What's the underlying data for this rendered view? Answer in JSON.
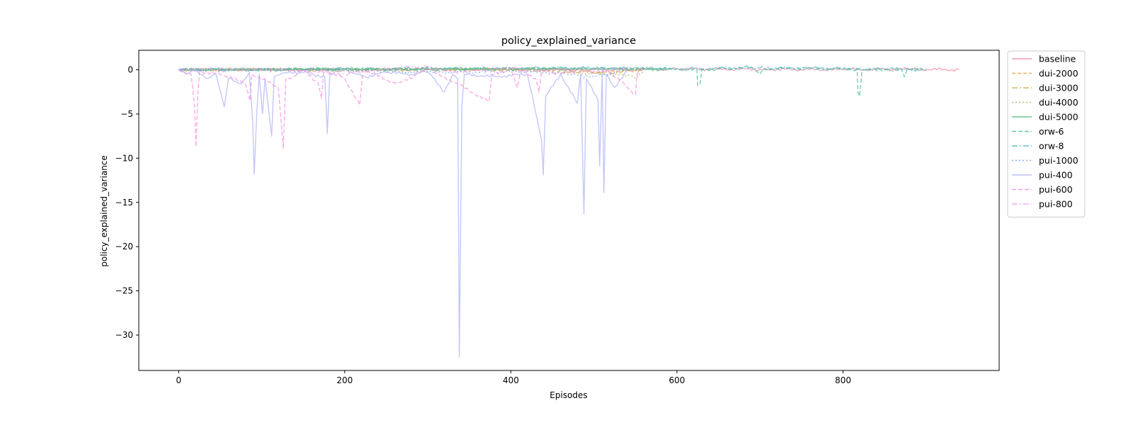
{
  "chart_data": {
    "type": "line",
    "title": "policy_explained_variance",
    "xlabel": "Episodes",
    "ylabel": "policy_explained_variance",
    "xlim": [
      -48,
      988
    ],
    "ylim": [
      -34.0,
      2.2
    ],
    "xticks": [
      0,
      200,
      400,
      600,
      800
    ],
    "yticks": [
      0,
      -5,
      -10,
      -15,
      -20,
      -25,
      -30
    ],
    "grid": false,
    "legend_position": "outside-top-right",
    "series": [
      {
        "name": "baseline",
        "color": "#f28ba0",
        "dash": "solid",
        "x_end": 940,
        "points": [
          [
            0,
            0
          ],
          [
            60,
            -0.05
          ],
          [
            120,
            0.02
          ],
          [
            200,
            0.05
          ],
          [
            300,
            0.03
          ],
          [
            400,
            0.06
          ],
          [
            500,
            0.02
          ],
          [
            600,
            0.08
          ],
          [
            700,
            0.05
          ],
          [
            800,
            0.02
          ],
          [
            880,
            0.06
          ],
          [
            940,
            0
          ]
        ]
      },
      {
        "name": "dui-2000",
        "color": "#e3a73b",
        "dash": "5,3",
        "x_end": 555,
        "points": [
          [
            0,
            0
          ],
          [
            100,
            0.05
          ],
          [
            200,
            -0.1
          ],
          [
            300,
            0.1
          ],
          [
            400,
            0.05
          ],
          [
            480,
            -0.3
          ],
          [
            520,
            -0.2
          ],
          [
            555,
            0
          ]
        ]
      },
      {
        "name": "dui-3000",
        "color": "#c9a843",
        "dash": "8,3,2,3",
        "x_end": 560,
        "points": [
          [
            0,
            0
          ],
          [
            150,
            0.05
          ],
          [
            300,
            -0.05
          ],
          [
            450,
            0.1
          ],
          [
            520,
            -0.4
          ],
          [
            560,
            0
          ]
        ]
      },
      {
        "name": "dui-4000",
        "color": "#9cb05a",
        "dash": "2,3",
        "x_end": 560,
        "points": [
          [
            0,
            0
          ],
          [
            200,
            0.05
          ],
          [
            400,
            0.05
          ],
          [
            545,
            -0.7
          ],
          [
            550,
            -1.0
          ],
          [
            555,
            -0.5
          ],
          [
            560,
            0
          ]
        ]
      },
      {
        "name": "dui-5000",
        "color": "#4ec07a",
        "dash": "solid",
        "x_end": 590,
        "points": [
          [
            0,
            0
          ],
          [
            150,
            0.04
          ],
          [
            300,
            0.06
          ],
          [
            450,
            0.08
          ],
          [
            520,
            0.1
          ],
          [
            590,
            0.05
          ]
        ]
      },
      {
        "name": "orw-6",
        "color": "#3fbfa0",
        "dash": "6,3",
        "x_end": 900,
        "points": [
          [
            0,
            0
          ],
          [
            200,
            0.1
          ],
          [
            400,
            0.15
          ],
          [
            600,
            0.1
          ],
          [
            624,
            0
          ],
          [
            625,
            -1.8
          ],
          [
            628,
            -1.5
          ],
          [
            630,
            0
          ],
          [
            690,
            0.3
          ],
          [
            700,
            -0.5
          ],
          [
            704,
            0.1
          ],
          [
            760,
            0.2
          ],
          [
            817,
            0
          ],
          [
            818,
            -2.6
          ],
          [
            820,
            -3.0
          ],
          [
            823,
            0
          ],
          [
            870,
            0.1
          ],
          [
            874,
            -0.8
          ],
          [
            877,
            0
          ],
          [
            900,
            0.1
          ]
        ]
      },
      {
        "name": "orw-8",
        "color": "#45b6c0",
        "dash": "8,3,2,3",
        "x_end": 900,
        "points": [
          [
            0,
            0
          ],
          [
            250,
            0.1
          ],
          [
            500,
            0.2
          ],
          [
            600,
            0.1
          ],
          [
            700,
            0.2
          ],
          [
            800,
            0.1
          ],
          [
            900,
            0
          ]
        ]
      },
      {
        "name": "pui-1000",
        "color": "#6f9df0",
        "dash": "2,3",
        "x_end": 540,
        "points": [
          [
            0,
            0
          ],
          [
            200,
            -0.1
          ],
          [
            300,
            -0.3
          ],
          [
            420,
            -0.2
          ],
          [
            470,
            -0.5
          ],
          [
            500,
            -0.8
          ],
          [
            540,
            0
          ]
        ]
      },
      {
        "name": "pui-400",
        "color": "#b0b4f5",
        "dash": "solid",
        "x_end": 540,
        "points": [
          [
            0,
            0
          ],
          [
            10,
            -0.5
          ],
          [
            20,
            0
          ],
          [
            35,
            -1.0
          ],
          [
            45,
            -0.5
          ],
          [
            55,
            -4.2
          ],
          [
            60,
            -1.0
          ],
          [
            75,
            -1.6
          ],
          [
            85,
            -0.3
          ],
          [
            89,
            -5.5
          ],
          [
            91,
            -11.8
          ],
          [
            94,
            -5.0
          ],
          [
            97,
            -0.5
          ],
          [
            101,
            -5.0
          ],
          [
            104,
            -1.0
          ],
          [
            112,
            -7.5
          ],
          [
            115,
            -0.8
          ],
          [
            125,
            -0.4
          ],
          [
            150,
            -0.3
          ],
          [
            176,
            -0.8
          ],
          [
            179,
            -7.2
          ],
          [
            182,
            -0.5
          ],
          [
            200,
            0
          ],
          [
            225,
            -0.8
          ],
          [
            250,
            -0.3
          ],
          [
            280,
            -0.5
          ],
          [
            300,
            -0.2
          ],
          [
            320,
            -2.5
          ],
          [
            330,
            -0.5
          ],
          [
            336,
            -1.0
          ],
          [
            338,
            -32.5
          ],
          [
            341,
            -4.2
          ],
          [
            344,
            -0.5
          ],
          [
            380,
            -0.8
          ],
          [
            420,
            -0.5
          ],
          [
            437,
            -8.0
          ],
          [
            439,
            -11.9
          ],
          [
            442,
            -3.0
          ],
          [
            460,
            -0.5
          ],
          [
            480,
            -3.8
          ],
          [
            484,
            -0.5
          ],
          [
            488,
            -16.3
          ],
          [
            491,
            -1.0
          ],
          [
            505,
            -3.5
          ],
          [
            507,
            -10.9
          ],
          [
            510,
            0
          ],
          [
            512,
            -13.9
          ],
          [
            515,
            -0.5
          ],
          [
            525,
            -2.0
          ],
          [
            540,
            0
          ]
        ]
      },
      {
        "name": "pui-600",
        "color": "#f58fdd",
        "dash": "6,3",
        "x_end": 555,
        "points": [
          [
            0,
            0
          ],
          [
            15,
            -0.5
          ],
          [
            19,
            -4.0
          ],
          [
            21,
            -8.7
          ],
          [
            23,
            -3.0
          ],
          [
            25,
            -0.2
          ],
          [
            50,
            -0.5
          ],
          [
            80,
            -1.5
          ],
          [
            86,
            -3.5
          ],
          [
            88,
            -0.5
          ],
          [
            120,
            -2.0
          ],
          [
            126,
            -8.9
          ],
          [
            129,
            -1.0
          ],
          [
            135,
            -1.0
          ],
          [
            150,
            0
          ],
          [
            168,
            -1.5
          ],
          [
            172,
            -3.2
          ],
          [
            175,
            0
          ],
          [
            200,
            -1.0
          ],
          [
            218,
            -4.0
          ],
          [
            222,
            0
          ],
          [
            260,
            -1.5
          ],
          [
            280,
            -1.0
          ],
          [
            300,
            0.2
          ],
          [
            320,
            -0.8
          ],
          [
            374,
            -3.6
          ],
          [
            377,
            -0.5
          ],
          [
            400,
            0
          ],
          [
            408,
            -2.0
          ],
          [
            412,
            0
          ],
          [
            430,
            -1.0
          ],
          [
            434,
            -2.5
          ],
          [
            437,
            0
          ],
          [
            480,
            0
          ],
          [
            520,
            -0.3
          ],
          [
            550,
            -2.8
          ],
          [
            552,
            -0.5
          ],
          [
            555,
            0
          ]
        ]
      },
      {
        "name": "pui-800",
        "color": "#f5a0e8",
        "dash": "8,3,2,3",
        "x_end": 560,
        "points": [
          [
            0,
            0
          ],
          [
            60,
            0.1
          ],
          [
            120,
            0.05
          ],
          [
            200,
            -0.5
          ],
          [
            260,
            0.2
          ],
          [
            300,
            0.4
          ],
          [
            330,
            -0.3
          ],
          [
            400,
            0.2
          ],
          [
            460,
            -0.4
          ],
          [
            520,
            0.1
          ],
          [
            560,
            0
          ]
        ]
      }
    ]
  }
}
